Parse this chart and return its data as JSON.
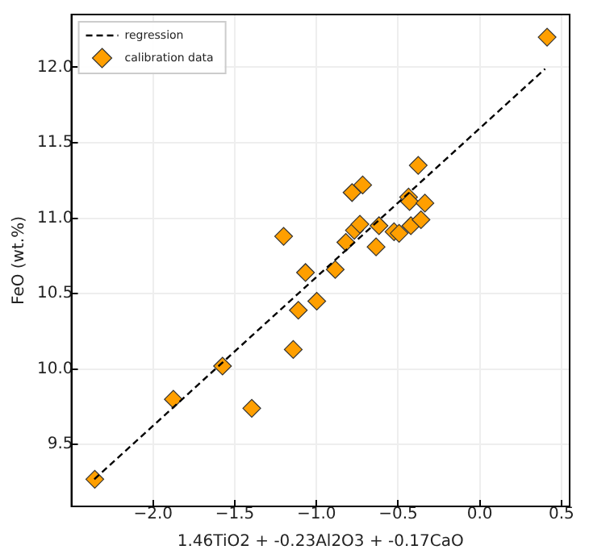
{
  "chart_data": {
    "type": "scatter",
    "xlabel": "1.46TiO2 + -0.23Al2O3 + -0.17CaO",
    "ylabel": "FeO (wt.%)",
    "xlim": [
      -2.5,
      0.55
    ],
    "xticks": [
      {
        "value": -2.0,
        "label": "−2.0"
      },
      {
        "value": -1.5,
        "label": "−1.5"
      },
      {
        "value": -1.0,
        "label": "−1.0"
      },
      {
        "value": -0.5,
        "label": "−0.5"
      },
      {
        "value": 0,
        "label": "0.0"
      },
      {
        "value": 0.5,
        "label": "0.5"
      }
    ],
    "ylim": [
      9.09,
      12.35
    ],
    "yticks": [
      {
        "value": 9.5,
        "label": "9.5"
      },
      {
        "value": 10,
        "label": "10.0"
      },
      {
        "value": 10.5,
        "label": "10.5"
      },
      {
        "value": 11,
        "label": "11.0"
      },
      {
        "value": 11.5,
        "label": "11.5"
      },
      {
        "value": 12,
        "label": "12.0"
      }
    ],
    "grid": true,
    "legend": "top left",
    "series": [
      {
        "name": "regression",
        "type": "line",
        "color": "#000000",
        "line_style": "dashed",
        "marker": "none",
        "x": [
          -2.36,
          0.4
        ],
        "values": [
          9.27,
          11.99
        ]
      },
      {
        "name": "calibration data",
        "color": "#ff9f00",
        "marker": "diamond",
        "x": [
          -2.357,
          -1.876,
          -1.575,
          -1.396,
          -1.201,
          -1.142,
          -1.111,
          -1.067,
          -0.998,
          -0.885,
          -0.82,
          -0.782,
          -0.768,
          -0.734,
          -0.717,
          -0.635,
          -0.617,
          -0.525,
          -0.494,
          -0.436,
          -0.43,
          -0.422,
          -0.377,
          -0.36,
          -0.336,
          0.412
        ],
        "values": [
          9.27,
          9.8,
          10.02,
          9.74,
          10.88,
          10.13,
          10.39,
          10.64,
          10.45,
          10.66,
          10.84,
          11.17,
          10.92,
          10.96,
          11.22,
          10.81,
          10.95,
          10.91,
          10.9,
          11.14,
          11.11,
          10.95,
          11.35,
          10.99,
          11.1,
          12.2
        ]
      }
    ]
  }
}
